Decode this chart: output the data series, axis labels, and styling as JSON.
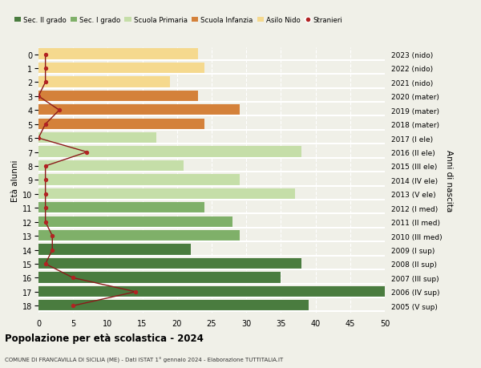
{
  "ages": [
    18,
    17,
    16,
    15,
    14,
    13,
    12,
    11,
    10,
    9,
    8,
    7,
    6,
    5,
    4,
    3,
    2,
    1,
    0
  ],
  "values": [
    39,
    50,
    35,
    38,
    22,
    29,
    28,
    24,
    37,
    29,
    21,
    38,
    17,
    24,
    29,
    23,
    19,
    24,
    23
  ],
  "bar_colors": [
    "#4a7c3f",
    "#4a7c3f",
    "#4a7c3f",
    "#4a7c3f",
    "#4a7c3f",
    "#7fb069",
    "#7fb069",
    "#7fb069",
    "#c5dea8",
    "#c5dea8",
    "#c5dea8",
    "#c5dea8",
    "#c5dea8",
    "#d4813a",
    "#d4813a",
    "#d4813a",
    "#f5d98e",
    "#f5d98e",
    "#f5d98e"
  ],
  "right_labels": [
    "2005 (V sup)",
    "2006 (IV sup)",
    "2007 (III sup)",
    "2008 (II sup)",
    "2009 (I sup)",
    "2010 (III med)",
    "2011 (II med)",
    "2012 (I med)",
    "2013 (V ele)",
    "2014 (IV ele)",
    "2015 (III ele)",
    "2016 (II ele)",
    "2017 (I ele)",
    "2018 (mater)",
    "2019 (mater)",
    "2020 (mater)",
    "2021 (nido)",
    "2022 (nido)",
    "2023 (nido)"
  ],
  "stranieri_values": [
    5,
    14,
    5,
    1,
    2,
    2,
    1,
    1,
    1,
    1,
    1,
    7,
    0,
    1,
    3,
    0,
    1,
    1,
    1
  ],
  "legend_labels": [
    "Sec. II grado",
    "Sec. I grado",
    "Scuola Primaria",
    "Scuola Infanzia",
    "Asilo Nido",
    "Stranieri"
  ],
  "legend_colors": [
    "#4a7c3f",
    "#7fb069",
    "#c5dea8",
    "#d4813a",
    "#f5d98e",
    "#b22222"
  ],
  "ylabel": "Età alunni",
  "ylabel_right": "Anni di nascita",
  "title": "Popolazione per età scolastica - 2024",
  "subtitle": "COMUNE DI FRANCAVILLA DI SICILIA (ME) - Dati ISTAT 1° gennaio 2024 - Elaborazione TUTTITALIA.IT",
  "xlim": [
    0,
    50
  ],
  "background_color": "#f0f0e8"
}
